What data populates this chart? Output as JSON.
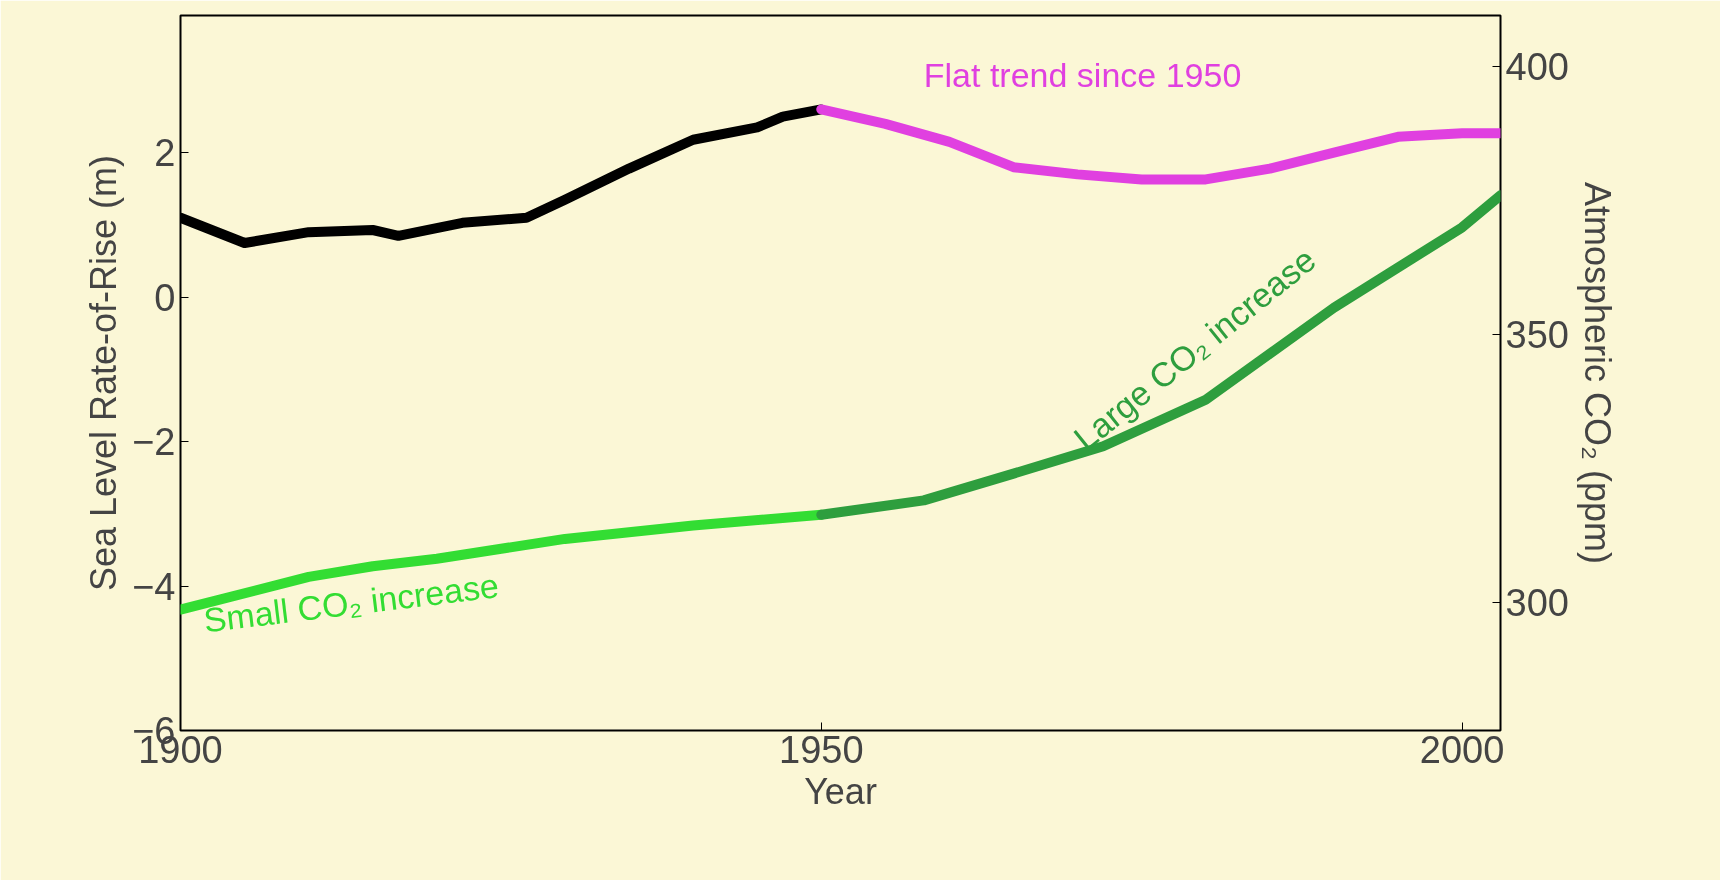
{
  "chart_data": {
    "type": "line",
    "xlabel": "Year",
    "ylabel": "Sea Level Rate-of-Rise (m)",
    "y2label": "Atmospheric CO₂ (ppm)",
    "xlim": [
      1900,
      2003
    ],
    "xticks": [
      1900,
      1950,
      2000
    ],
    "ylim": [
      -6,
      3.9
    ],
    "yticks": [
      -6,
      -4,
      -2,
      0,
      2
    ],
    "y2lim": [
      276,
      409.6
    ],
    "y2ticks": [
      300,
      350,
      400
    ],
    "grid": false,
    "line_style": "solid",
    "marker": "none",
    "series": [
      {
        "color": "#000000",
        "x": [
          1900,
          1905,
          1910,
          1915,
          1917,
          1922,
          1927,
          1930,
          1935,
          1940,
          1945,
          1947,
          1950
        ],
        "values": [
          1.1,
          0.75,
          0.9,
          0.93,
          0.85,
          1.03,
          1.1,
          1.35,
          1.78,
          2.18,
          2.35,
          2.5,
          2.6
        ]
      },
      {
        "color": "#e040e0",
        "x": [
          1950,
          1955,
          1960,
          1965,
          1970,
          1975,
          1980,
          1985,
          1990,
          1995,
          2000,
          2003
        ],
        "values": [
          2.6,
          2.4,
          2.15,
          1.8,
          1.7,
          1.63,
          1.63,
          1.78,
          2.0,
          2.22,
          2.27,
          2.27
        ]
      },
      {
        "color": "#33dd33",
        "axis": "y2",
        "x": [
          1900,
          1910,
          1915,
          1920,
          1930,
          1940,
          1950
        ],
        "values": [
          298.6,
          304.7,
          306.7,
          308.1,
          311.8,
          314.3,
          316.3
        ]
      },
      {
        "color": "#2e9e3e",
        "axis": "y2",
        "x": [
          1950,
          1958,
          1965,
          1972,
          1980,
          1990,
          2000,
          2003
        ],
        "values": [
          316.3,
          319,
          324,
          329.1,
          337.8,
          355,
          370,
          376
        ]
      }
    ],
    "annotations": [
      "Flat trend since 1950",
      "Small CO₂ increase",
      "Large CO₂ increase"
    ]
  }
}
